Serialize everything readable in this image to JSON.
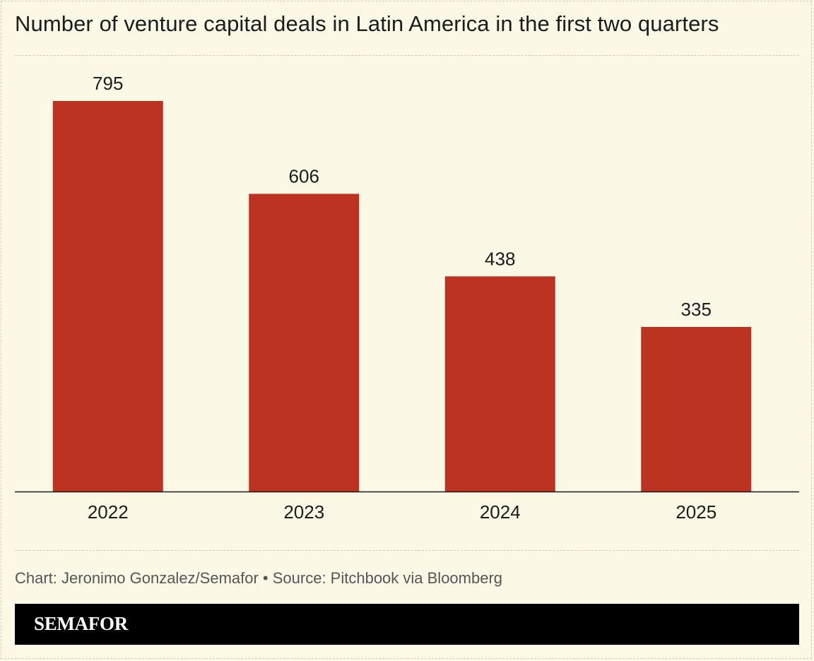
{
  "chart_data": {
    "type": "bar",
    "title": "Number of venture capital deals in Latin America in the first two quarters",
    "categories": [
      "2022",
      "2023",
      "2024",
      "2025"
    ],
    "values": [
      795,
      606,
      438,
      335
    ],
    "xlabel": "",
    "ylabel": "",
    "ylim": [
      0,
      795
    ],
    "grid": false,
    "legend": "none"
  },
  "colors": {
    "bar": "#bd3321",
    "background": "#fbf8e6",
    "axis": "#1a1a1a"
  },
  "footer": {
    "source": "Chart: Jeronimo Gonzalez/Semafor • Source: Pitchbook via Bloomberg",
    "brand": "SEMAFOR"
  }
}
